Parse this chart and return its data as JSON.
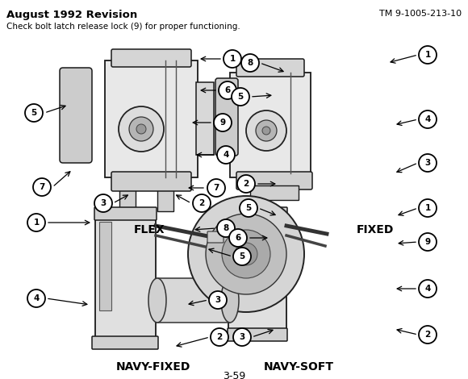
{
  "title_left": "August 1992 Revision",
  "title_right": "TM 9-1005-213-10",
  "subtitle": "Check bolt latch release lock (9) for proper functioning.",
  "page_num": "3-59",
  "bg_color": "#ffffff",
  "text_color": "#000000",
  "figsize": [
    5.8,
    4.7
  ],
  "dpi": 100
}
